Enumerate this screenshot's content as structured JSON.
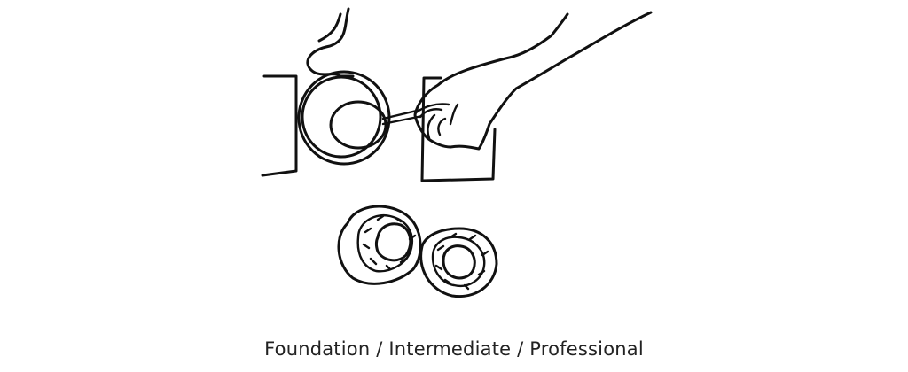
{
  "illustration": {
    "subject": "line-drawing-hand-scooping-with-spoon"
  },
  "caption": {
    "text": "Foundation / Intermediate / Professional"
  }
}
